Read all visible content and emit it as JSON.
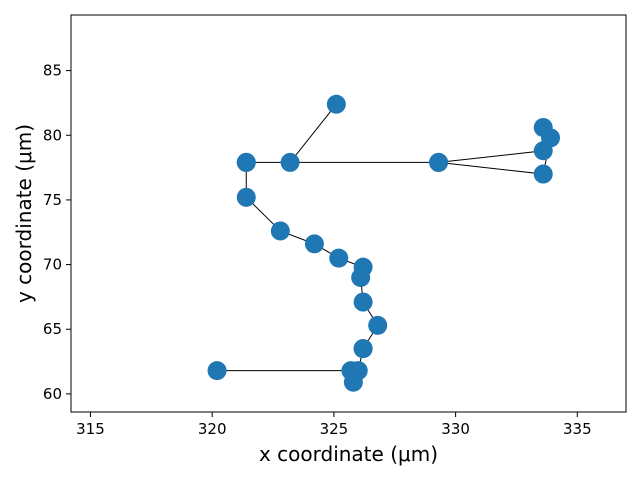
{
  "chart_data": {
    "type": "scatter",
    "title": "",
    "xlabel": "x coordinate (μm)",
    "ylabel": "y coordinate (μm)",
    "xlim": [
      314.2,
      337.0
    ],
    "ylim": [
      58.6,
      89.3
    ],
    "xticks": [
      315,
      320,
      325,
      330,
      335
    ],
    "yticks": [
      60,
      65,
      70,
      75,
      80,
      85
    ],
    "grid": false,
    "connected": true,
    "marker_color": "#1f77b4",
    "line_color": "#000000",
    "series": [
      {
        "x": [
          325.1,
          323.2,
          321.4,
          329.3,
          333.6,
          333.6,
          333.9,
          333.6,
          329.3,
          321.4,
          321.4,
          322.8,
          324.2,
          325.2,
          326.2,
          326.1,
          326.2,
          326.8,
          326.2,
          326.2,
          326.0,
          325.8,
          325.7,
          320.2
        ],
        "y": [
          82.4,
          77.9,
          77.9,
          77.9,
          78.8,
          80.6,
          79.8,
          77.0,
          77.9,
          77.9,
          75.2,
          72.6,
          71.6,
          70.5,
          69.8,
          69.0,
          67.1,
          65.3,
          63.5,
          63.5,
          61.8,
          60.9,
          61.8,
          61.8
        ]
      }
    ]
  }
}
